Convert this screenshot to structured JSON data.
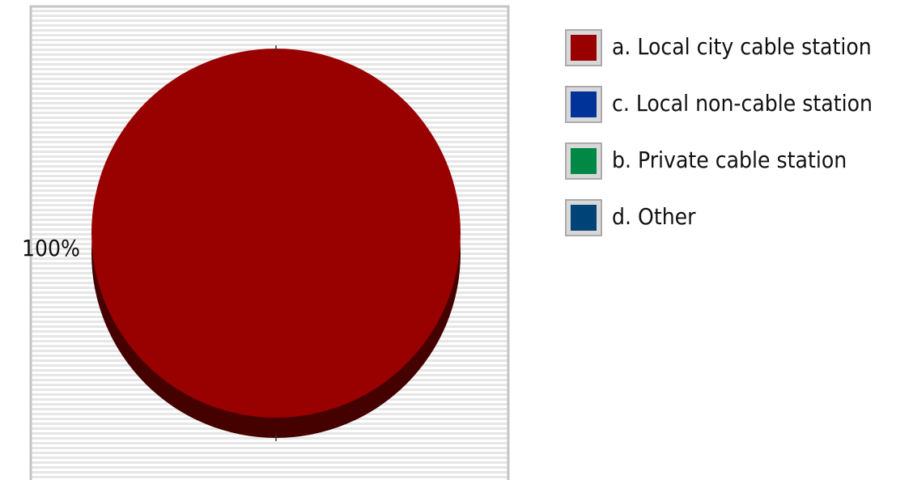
{
  "chart_data": {
    "type": "pie",
    "categories": [
      "a. Local city cable station",
      "c. Local non-cable station",
      "b. Private cable station",
      "d. Other"
    ],
    "values": [
      100,
      0,
      0,
      0
    ],
    "value_labels": [
      "100%",
      null,
      null,
      null
    ],
    "colors": [
      "#990000",
      "#003399",
      "#008844",
      "#004477"
    ],
    "legend": "right"
  }
}
